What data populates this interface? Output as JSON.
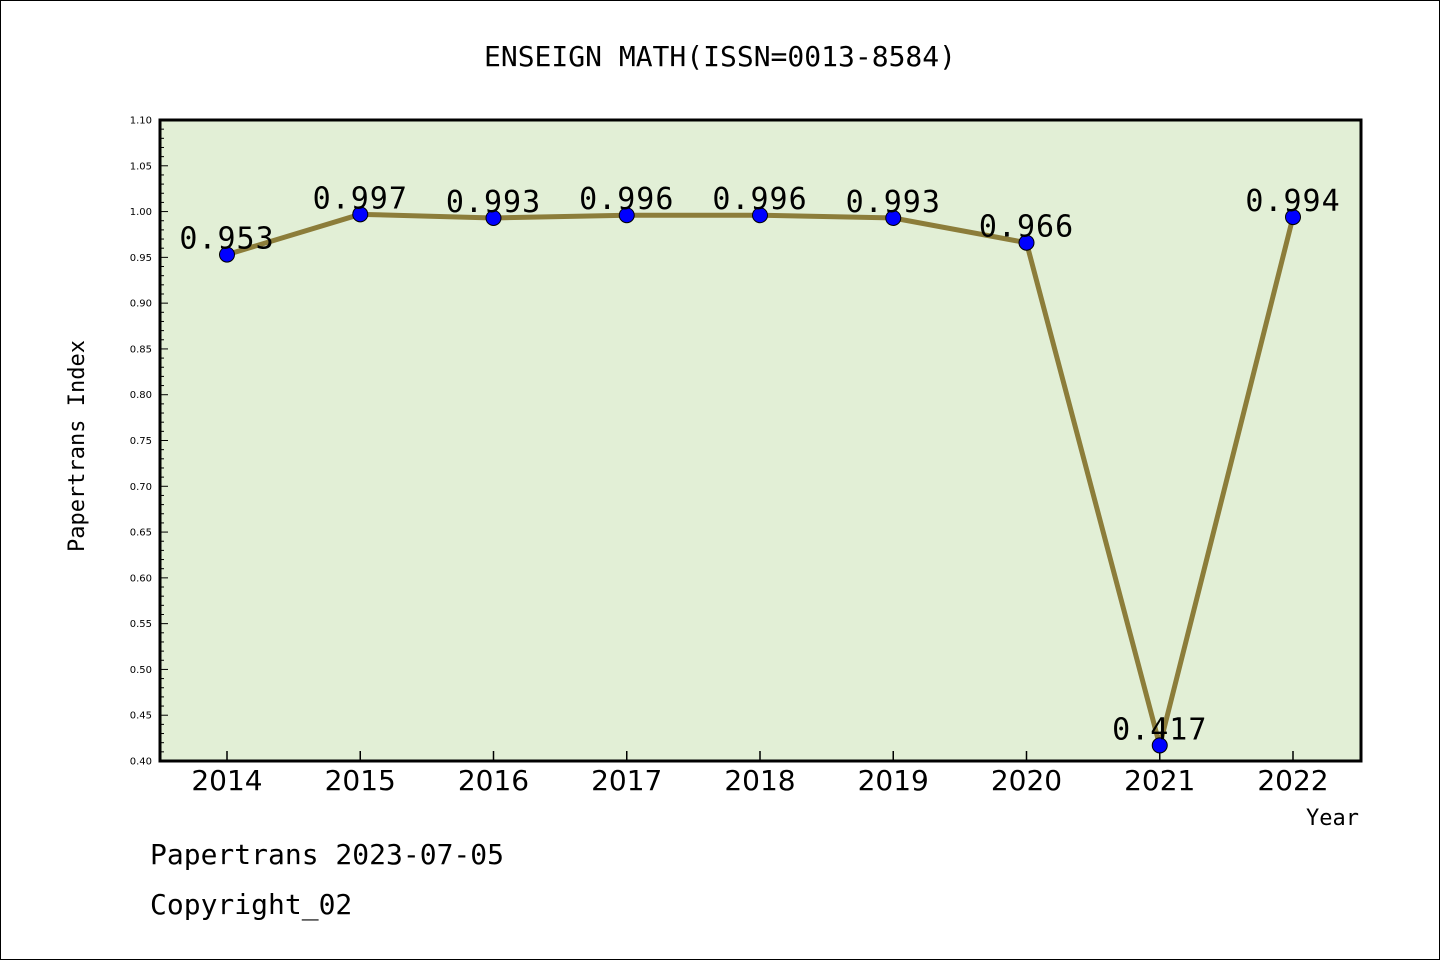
{
  "footer": {
    "line1": "Papertrans 2023-07-05",
    "line2": "Copyright_02"
  },
  "colors": {
    "plot_bg": "#e2efd6",
    "line": "#8c7d3a",
    "marker": "#0000ff",
    "frame": "#000000"
  },
  "chart_data": {
    "type": "line",
    "title": "ENSEIGN MATH(ISSN=0013-8584)",
    "xlabel": "Year",
    "ylabel": "Papertrans Index",
    "categories": [
      "2014",
      "2015",
      "2016",
      "2017",
      "2018",
      "2019",
      "2020",
      "2021",
      "2022"
    ],
    "series": [
      {
        "values": [
          0.953,
          0.997,
          0.993,
          0.996,
          0.996,
          0.993,
          0.966,
          0.417,
          0.994
        ],
        "labels": [
          "0.953",
          "0.997",
          "0.993",
          "0.996",
          "0.996",
          "0.993",
          "0.966",
          "0.417",
          "0.994"
        ]
      }
    ],
    "ylim": [
      0.4,
      1.1
    ],
    "yticks": [
      "0.40",
      "0.45",
      "0.50",
      "0.55",
      "0.60",
      "0.65",
      "0.70",
      "0.75",
      "0.80",
      "0.85",
      "0.90",
      "0.95",
      "1.00",
      "1.05",
      "1.10"
    ],
    "grid": false,
    "legend": "none"
  }
}
